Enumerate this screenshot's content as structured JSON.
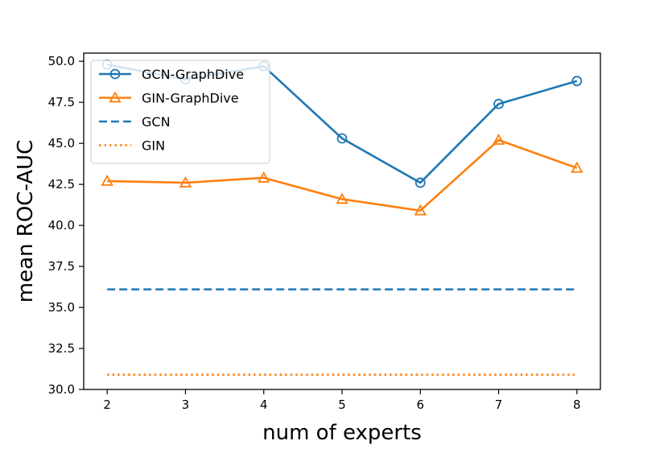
{
  "chart_data": {
    "type": "line",
    "xlabel": "num of experts",
    "ylabel": "mean ROC-AUC",
    "x": [
      2,
      3,
      4,
      5,
      6,
      7,
      8
    ],
    "xlim": [
      1.7,
      8.3
    ],
    "ylim": [
      30.0,
      50.5
    ],
    "xticks": [
      "2",
      "3",
      "4",
      "5",
      "6",
      "7",
      "8"
    ],
    "yticks": [
      "30.0",
      "32.5",
      "35.0",
      "37.5",
      "40.0",
      "42.5",
      "45.0",
      "47.5",
      "50.0"
    ],
    "ytick_values": [
      30.0,
      32.5,
      35.0,
      37.5,
      40.0,
      42.5,
      45.0,
      47.5,
      50.0
    ],
    "grid": false,
    "legend_position": "top-left",
    "series": [
      {
        "name": "GCN-GraphDive",
        "values": [
          49.8,
          48.9,
          49.7,
          45.3,
          42.6,
          47.4,
          48.8
        ],
        "color": "#1f77b4",
        "style": "solid",
        "marker": "circle"
      },
      {
        "name": "GIN-GraphDive",
        "values": [
          42.7,
          42.6,
          42.9,
          41.6,
          40.9,
          45.2,
          43.5
        ],
        "color": "#ff7f0e",
        "style": "solid",
        "marker": "triangle"
      },
      {
        "name": "GCN",
        "values": [
          36.1,
          36.1,
          36.1,
          36.1,
          36.1,
          36.1,
          36.1
        ],
        "color": "#1f77b4",
        "style": "dashed",
        "marker": "none"
      },
      {
        "name": "GIN",
        "values": [
          30.9,
          30.9,
          30.9,
          30.9,
          30.9,
          30.9,
          30.9
        ],
        "color": "#ff7f0e",
        "style": "dotted",
        "marker": "none"
      }
    ]
  }
}
